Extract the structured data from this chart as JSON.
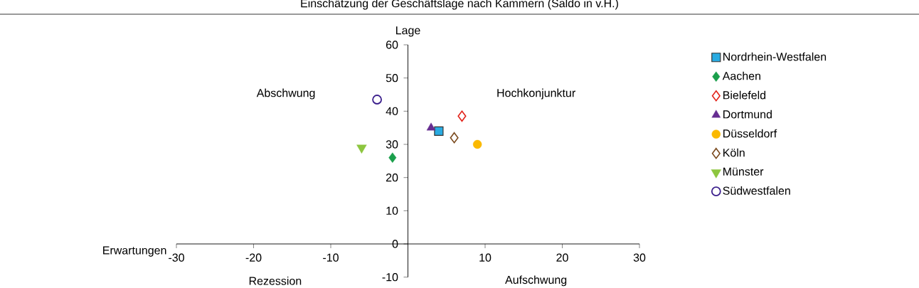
{
  "chart_data": {
    "type": "scatter",
    "title": "Einschätzung der Geschäftslage nach Kammern (Saldo in v.H.)",
    "xlabel": "Erwartungen",
    "ylabel": "Lage",
    "annotations": [
      "Abschwung",
      "Hochkonjunktur",
      "Rezession",
      "Aufschwung"
    ],
    "xlim": [
      -30,
      30
    ],
    "ylim": [
      -10,
      60
    ],
    "xticks": [
      -30,
      -20,
      -10,
      10,
      20,
      30
    ],
    "yticks": [
      -10,
      0,
      10,
      20,
      30,
      40,
      50,
      60
    ],
    "grid": false,
    "legend": "right",
    "series": [
      {
        "name": "Nordrhein-Westfalen",
        "color": "#29abe2",
        "marker": "square",
        "x": [
          4
        ],
        "values": [
          34
        ]
      },
      {
        "name": "Aachen",
        "color": "#1a9f4b",
        "marker": "diamond",
        "x": [
          -2
        ],
        "values": [
          26
        ]
      },
      {
        "name": "Bielefeld",
        "color": "#e2231a",
        "marker": "diamond",
        "x": [
          7
        ],
        "values": [
          38.5
        ]
      },
      {
        "name": "Dortmund",
        "color": "#662d91",
        "marker": "triangle",
        "x": [
          3
        ],
        "values": [
          35
        ]
      },
      {
        "name": "Düsseldorf",
        "color": "#fbb900",
        "marker": "circle",
        "x": [
          9
        ],
        "values": [
          30
        ]
      },
      {
        "name": "Köln",
        "color": "#7b4a1e",
        "marker": "diamond",
        "x": [
          6
        ],
        "values": [
          32
        ]
      },
      {
        "name": "Münster",
        "color": "#8dc63f",
        "marker": "triangle",
        "x": [
          -6
        ],
        "values": [
          29
        ]
      },
      {
        "name": "Südwestfalen",
        "color": "#3b1f8c",
        "marker": "circle",
        "x": [
          -4
        ],
        "values": [
          43.5
        ]
      }
    ]
  }
}
